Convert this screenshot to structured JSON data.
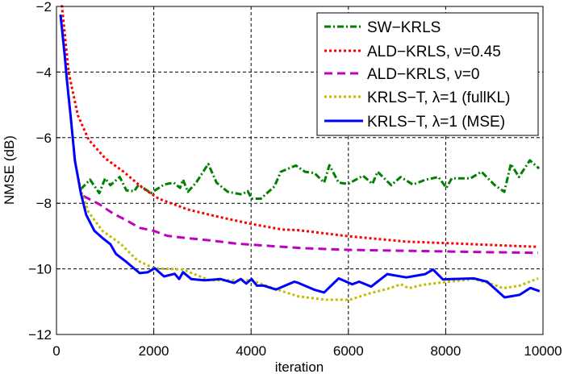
{
  "chart_data": {
    "type": "line",
    "title": "",
    "xlabel": "iteration",
    "ylabel": "NMSE (dB)",
    "xlim": [
      0,
      10000
    ],
    "ylim": [
      -12,
      -2
    ],
    "xticks": [
      0,
      2000,
      4000,
      6000,
      8000,
      10000
    ],
    "xtick_labels": [
      "0",
      "2000",
      "4000",
      "6000",
      "8000",
      "10000"
    ],
    "yticks": [
      -12,
      -10,
      -8,
      -6,
      -4,
      -2
    ],
    "ytick_labels": [
      "−12",
      "−10",
      "−8",
      "−6",
      "−4",
      "−2"
    ],
    "grid": true,
    "legend_position": "top-right",
    "series": [
      {
        "name": "SW−KRLS",
        "color": "#008000",
        "style": "dash-dot",
        "x": [
          500,
          690,
          880,
          1000,
          1110,
          1300,
          1440,
          1600,
          1690,
          1940,
          2210,
          2410,
          2540,
          2600,
          2700,
          2870,
          3120,
          3290,
          3520,
          3810,
          3930,
          4010,
          4200,
          4480,
          4610,
          4920,
          5110,
          5305,
          5500,
          5610,
          5800,
          5995,
          6300,
          6495,
          6600,
          6880,
          7075,
          7325,
          7570,
          7850,
          8015,
          8125,
          8510,
          8735,
          9010,
          9205,
          9340,
          9505,
          9730,
          9920
        ],
        "y": [
          -7.57,
          -7.28,
          -7.69,
          -7.24,
          -7.45,
          -7.2,
          -7.61,
          -7.63,
          -7.43,
          -7.69,
          -7.43,
          -7.37,
          -7.53,
          -7.28,
          -7.65,
          -7.37,
          -6.8,
          -7.37,
          -7.65,
          -7.73,
          -7.63,
          -7.86,
          -7.86,
          -7.49,
          -7.04,
          -6.85,
          -7.04,
          -7.08,
          -7.37,
          -6.84,
          -7.37,
          -7.41,
          -7.16,
          -7.41,
          -7.04,
          -7.45,
          -7.2,
          -7.43,
          -7.29,
          -7.2,
          -7.53,
          -7.24,
          -7.24,
          -7.04,
          -7.45,
          -7.65,
          -6.8,
          -7.2,
          -6.69,
          -6.94
        ]
      },
      {
        "name": "ALD−KRLS, ν=0.45",
        "color": "#ff0000",
        "style": "dotted",
        "x": [
          110,
          250,
          440,
          660,
          1000,
          1380,
          1770,
          2100,
          2700,
          3260,
          4000,
          4640,
          4975,
          5970,
          7190,
          8300,
          9900
        ],
        "y": [
          -1.96,
          -4.01,
          -5.32,
          -6.06,
          -6.63,
          -7.04,
          -7.53,
          -7.86,
          -8.19,
          -8.39,
          -8.63,
          -8.8,
          -8.82,
          -9.0,
          -9.17,
          -9.23,
          -9.33
        ]
      },
      {
        "name": "ALD−KRLS, ν=0",
        "color": "#c000c0",
        "style": "dashed",
        "x": [
          550,
          880,
          1160,
          1440,
          1710,
          2000,
          2270,
          2600,
          3150,
          3700,
          4270,
          5090,
          6000,
          7200,
          8800,
          9900
        ],
        "y": [
          -7.78,
          -8.03,
          -8.31,
          -8.52,
          -8.75,
          -8.84,
          -8.99,
          -9.05,
          -9.13,
          -9.23,
          -9.29,
          -9.37,
          -9.42,
          -9.45,
          -9.49,
          -9.51
        ]
      },
      {
        "name": "KRLS−T, λ=1 (fullKL)",
        "color": "#bfbf00",
        "style": "dotted",
        "x": [
          83,
          166,
          215,
          300,
          380,
          500,
          660,
          945,
          1330,
          1660,
          2000,
          2600,
          3150,
          4000,
          4530,
          4975,
          5530,
          6030,
          6410,
          6850,
          7080,
          7240,
          7520,
          7940,
          8580,
          8960,
          9180,
          9520,
          9900
        ],
        "y": [
          -2.25,
          -3.44,
          -4.26,
          -5.48,
          -6.71,
          -7.6,
          -8.27,
          -8.84,
          -9.25,
          -9.74,
          -9.98,
          -10.02,
          -10.35,
          -10.35,
          -10.63,
          -10.84,
          -10.94,
          -10.94,
          -10.76,
          -10.59,
          -10.47,
          -10.59,
          -10.49,
          -10.41,
          -10.31,
          -10.47,
          -10.59,
          -10.51,
          -10.29
        ]
      },
      {
        "name": "KRLS−T, λ=1 (MSE)",
        "color": "#0000ff",
        "style": "solid",
        "x": [
          83,
          166,
          215,
          300,
          380,
          500,
          610,
          780,
          945,
          1110,
          1220,
          1440,
          1710,
          1880,
          2020,
          2210,
          2430,
          2520,
          2600,
          2770,
          3040,
          3370,
          3650,
          3790,
          3900,
          4010,
          4120,
          4260,
          4510,
          4890,
          4975,
          5305,
          5500,
          5800,
          6080,
          6220,
          6470,
          6800,
          7190,
          7580,
          7740,
          7940,
          8580,
          8850,
          9210,
          9520,
          9740,
          9930
        ],
        "y": [
          -2.25,
          -3.44,
          -4.26,
          -5.48,
          -6.71,
          -7.69,
          -8.35,
          -8.84,
          -9.06,
          -9.25,
          -9.54,
          -9.79,
          -10.13,
          -10.1,
          -9.98,
          -10.23,
          -10.15,
          -10.31,
          -10.1,
          -10.31,
          -10.35,
          -10.31,
          -10.43,
          -10.31,
          -10.45,
          -10.31,
          -10.51,
          -10.51,
          -10.63,
          -10.39,
          -10.43,
          -10.64,
          -10.72,
          -10.29,
          -10.47,
          -10.39,
          -10.54,
          -10.16,
          -10.26,
          -10.16,
          -10.02,
          -10.32,
          -10.29,
          -10.39,
          -10.87,
          -10.79,
          -10.58,
          -10.68
        ]
      }
    ]
  }
}
